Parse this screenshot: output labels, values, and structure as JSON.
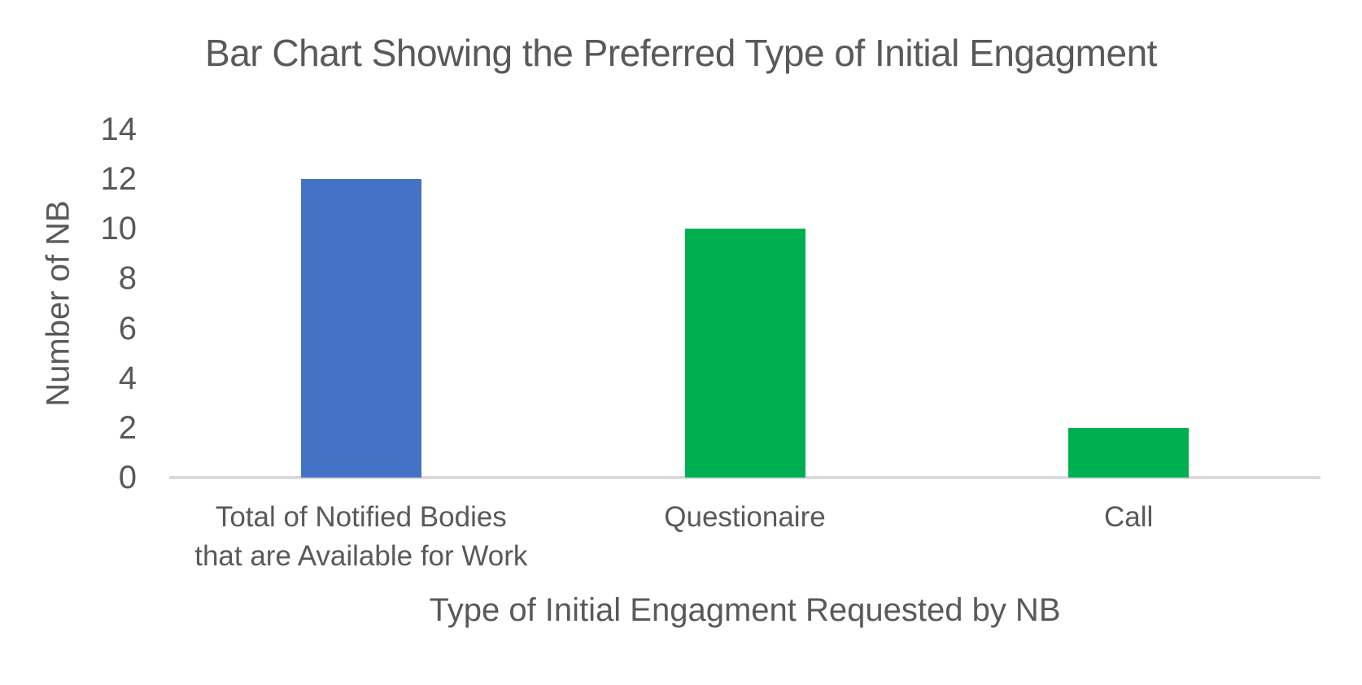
{
  "chart_data": {
    "type": "bar",
    "title": "Bar Chart Showing the Preferred Type of Initial Engagment",
    "xlabel": "Type of Initial Engagment Requested by NB",
    "ylabel": "Number of NB",
    "categories": [
      "Total of Notified Bodies\nthat are Available for Work",
      "Questionaire",
      "Call"
    ],
    "values": [
      12,
      10,
      2
    ],
    "bar_colors": [
      "#4472C4",
      "#00B050",
      "#00B050"
    ],
    "ylim": [
      0,
      14
    ],
    "ytick_step": 2,
    "yticks": [
      0,
      2,
      4,
      6,
      8,
      10,
      12,
      14
    ],
    "grid": false,
    "legend_position": "none",
    "text_color": "#595959",
    "axis_line_color": "#D9D9D9",
    "background_color": "#FFFFFF"
  }
}
